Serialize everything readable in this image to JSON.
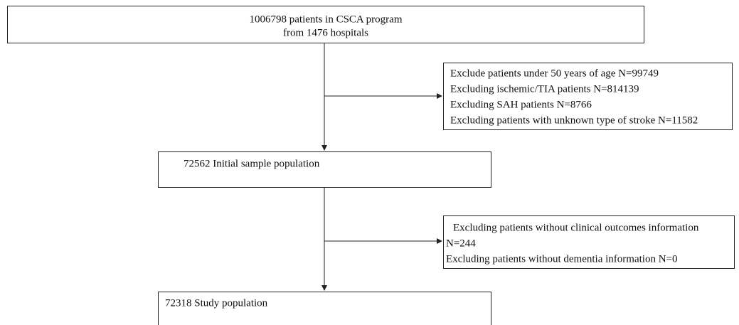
{
  "nodes": [
    {
      "lines": [
        "1006798 patients in CSCA program",
        "from 1476 hospitals"
      ]
    },
    {
      "lines": [
        "Exclude patients under 50 years of age  N=99749",
        "Excluding ischemic/TIA patients N=814139",
        "Excluding SAH patients N=8766",
        "Excluding patients with unknown type of stroke N=11582"
      ]
    },
    {
      "lines": [
        "72562 Initial sample population"
      ]
    },
    {
      "lines": [
        "Excluding patients without clinical outcomes information",
        "N=244",
        "Excluding patients without dementia information N=0"
      ]
    },
    {
      "lines": [
        "72318 Study population"
      ]
    }
  ]
}
